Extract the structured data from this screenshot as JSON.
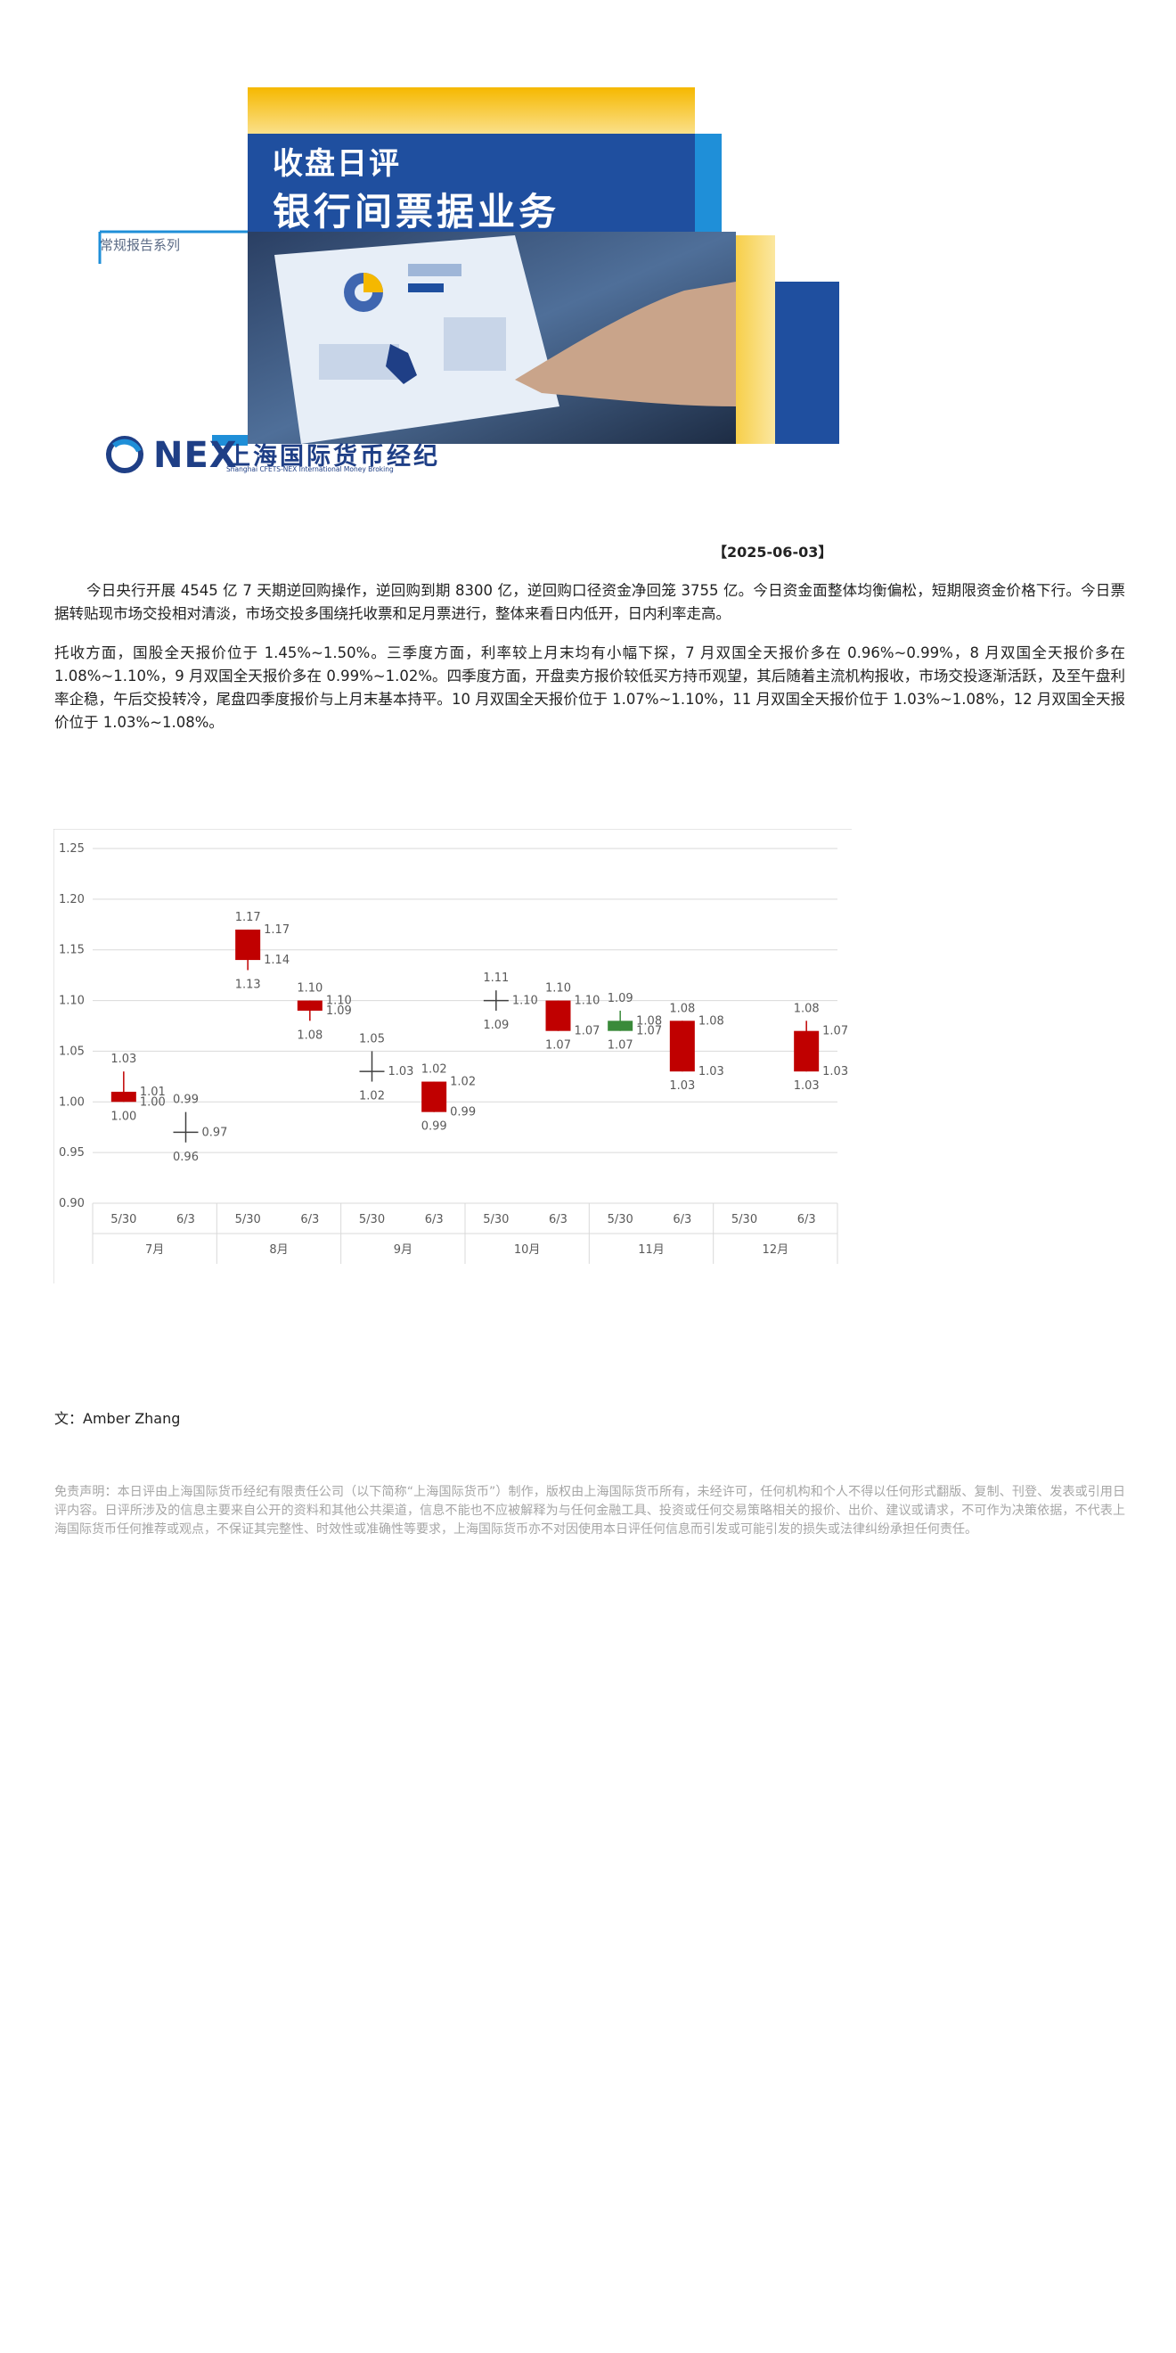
{
  "banner": {
    "series_tag": "常规报告系列",
    "title_line1": "收盘日评",
    "title_line2": "银行间票据业务",
    "logo_mark": "NEX",
    "logo_name": "上海国际货币经纪",
    "logo_subtitle": "Shanghai CFETS-NEX International Money Broking"
  },
  "report": {
    "date": "【2025-06-03】",
    "paragraph1": "今日央行开展 4545 亿 7 天期逆回购操作，逆回购到期 8300 亿，逆回购口径资金净回笼 3755 亿。今日资金面整体均衡偏松，短期限资金价格下行。今日票据转贴现市场交投相对清淡，市场交投多围绕托收票和足月票进行，整体来看日内低开，日内利率走高。",
    "paragraph2": "托收方面，国股全天报价位于 1.45%~1.50%。三季度方面，利率较上月末均有小幅下探，7 月双国全天报价多在 0.96%~0.99%，8 月双国全天报价多在 1.08%~1.10%，9 月双国全天报价多在 0.99%~1.02%。四季度方面，开盘卖方报价较低买方持币观望，其后随着主流机构报收，市场交投逐渐活跃，及至午盘利率企稳，午后交投转冷，尾盘四季度报价与上月末基本持平。10 月双国全天报价位于 1.07%~1.10%，11 月双国全天报价位于 1.03%~1.08%，12 月双国全天报价位于 1.03%~1.08%。",
    "author": "文：Amber  Zhang",
    "disclaimer": "免责声明：本日评由上海国际货币经纪有限责任公司（以下简称“上海国际货币”）制作，版权由上海国际货币所有，未经许可，任何机构和个人不得以任何形式翻版、复制、刊登、发表或引用日评内容。日评所涉及的信息主要来自公开的资料和其他公共渠道，信息不能也不应被解释为与任何金融工具、投资或任何交易策略相关的报价、出价、建议或请求，不可作为决策依据，不代表上海国际货币任何推荐或观点，不保证其完整性、时效性或准确性等要求，上海国际货币亦不对因使用本日评任何信息而引发或可能引发的损失或法律纠纷承担任何责任。"
  },
  "colors": {
    "candle_up": "#c00000",
    "candle_down": "#3a8a3a",
    "banner_blue": "#1f4f9f",
    "banner_gold": "#f5b800",
    "banner_light_blue": "#1f8fd8"
  },
  "chart_data": {
    "type": "candlestick",
    "ylim": [
      0.9,
      1.25
    ],
    "yticks": [
      "0.90",
      "0.95",
      "1.00",
      "1.05",
      "1.10",
      "1.15",
      "1.20",
      "1.25"
    ],
    "grid": true,
    "groups": [
      {
        "label": "7月",
        "candles": [
          {
            "date": "5/30",
            "open": 1.0,
            "high": 1.03,
            "low": 1.0,
            "close": 1.01
          },
          {
            "date": "6/3",
            "open": 0.97,
            "high": 0.99,
            "low": 0.96,
            "close": 0.97
          }
        ]
      },
      {
        "label": "8月",
        "candles": [
          {
            "date": "5/30",
            "open": 1.14,
            "high": 1.17,
            "low": 1.13,
            "close": 1.17
          },
          {
            "date": "6/3",
            "open": 1.09,
            "high": 1.1,
            "low": 1.08,
            "close": 1.1
          }
        ]
      },
      {
        "label": "9月",
        "candles": [
          {
            "date": "5/30",
            "open": 1.03,
            "high": 1.05,
            "low": 1.02,
            "close": 1.03
          },
          {
            "date": "6/3",
            "open": 0.99,
            "high": 1.02,
            "low": 0.99,
            "close": 1.02
          }
        ]
      },
      {
        "label": "10月",
        "candles": [
          {
            "date": "5/30",
            "open": 1.1,
            "high": 1.11,
            "low": 1.09,
            "close": 1.1
          },
          {
            "date": "6/3",
            "open": 1.07,
            "high": 1.1,
            "low": 1.07,
            "close": 1.1
          }
        ]
      },
      {
        "label": "11月",
        "candles": [
          {
            "date": "5/30",
            "open": 1.08,
            "high": 1.09,
            "low": 1.07,
            "close": 1.07
          },
          {
            "date": "6/3",
            "open": 1.03,
            "high": 1.08,
            "low": 1.03,
            "close": 1.08
          }
        ]
      },
      {
        "label": "12月",
        "candles": [
          {
            "date": "5/30"
          },
          {
            "date": "6/3",
            "open": 1.03,
            "high": 1.08,
            "low": 1.03,
            "close": 1.07
          }
        ]
      }
    ]
  }
}
